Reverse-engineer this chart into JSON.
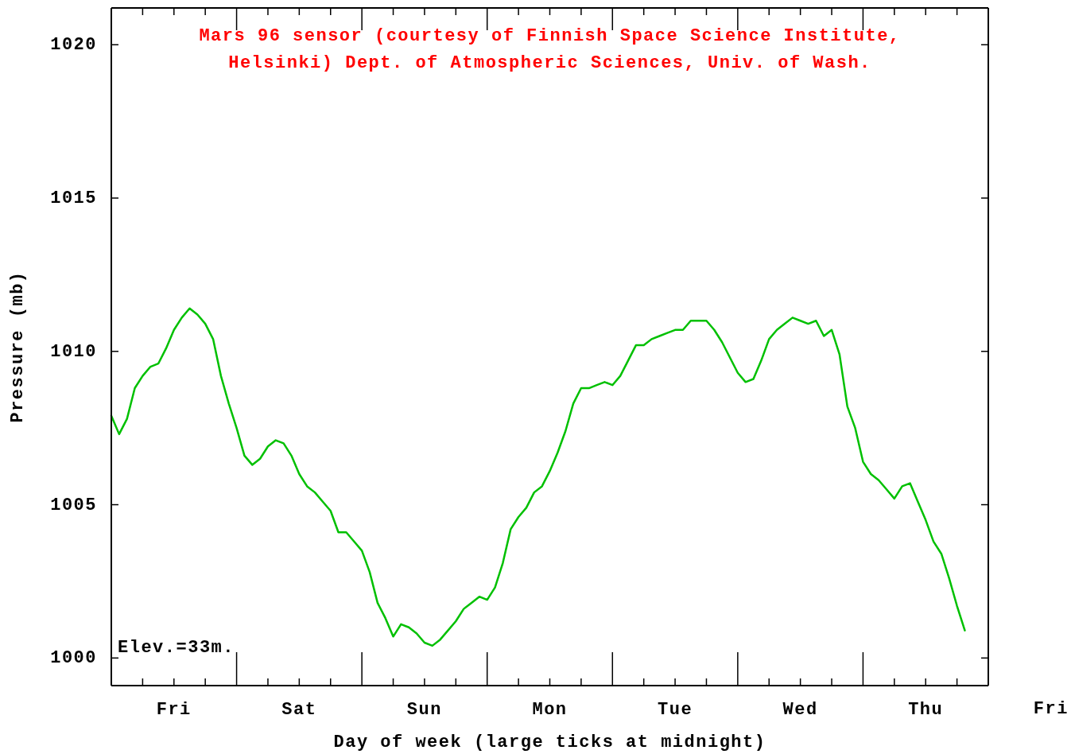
{
  "chart_data": {
    "type": "line",
    "title": "Mars 96 sensor (courtesy of Finnish Space Science Institute, Helsinki) Dept. of Atmospheric Sciences, Univ. of Wash.",
    "xlabel": "Day of week (large ticks at midnight)",
    "ylabel": "Pressure (mb)",
    "annotations": [
      "Elev.=33m.",
      "Fri"
    ],
    "categories": [
      null,
      null,
      null,
      null,
      null,
      null,
      null,
      null,
      "Fri",
      null,
      null,
      null,
      null,
      null,
      null,
      null,
      null,
      null,
      null,
      null,
      null,
      null,
      null,
      null,
      "Sat",
      null,
      null,
      null,
      null,
      null,
      null,
      null,
      null,
      null,
      null,
      null,
      null,
      null,
      null,
      null,
      "Sun",
      null,
      null,
      null,
      null,
      null,
      null,
      null,
      null,
      null,
      null,
      null,
      null,
      null,
      null,
      null,
      "Mon",
      null,
      null,
      null,
      null,
      null,
      null,
      null,
      null,
      null,
      null,
      null,
      null,
      null,
      null,
      null,
      "Tue",
      null,
      null,
      null,
      null,
      null,
      null,
      null,
      null,
      null,
      null,
      null,
      null,
      null,
      null,
      null,
      "Wed",
      null,
      null,
      null,
      null,
      null,
      null,
      null,
      null,
      null,
      null,
      null,
      null,
      null,
      null,
      null,
      "Thu",
      null,
      null,
      null,
      null,
      null,
      null,
      null,
      null
    ],
    "values": [
      1007.9,
      1007.3,
      1007.8,
      1008.8,
      1009.2,
      1009.5,
      1009.6,
      1010.1,
      1010.7,
      1011.1,
      1011.4,
      1011.2,
      1010.9,
      1010.4,
      1009.2,
      1008.3,
      1007.5,
      1006.6,
      1006.3,
      1006.5,
      1006.9,
      1007.1,
      1007.0,
      1006.6,
      1006.0,
      1005.6,
      1005.4,
      1005.1,
      1004.8,
      1004.1,
      1004.1,
      1003.8,
      1003.5,
      1002.8,
      1001.8,
      1001.3,
      1000.7,
      1001.1,
      1001.0,
      1000.8,
      1000.5,
      1000.4,
      1000.6,
      1000.9,
      1001.2,
      1001.6,
      1001.8,
      1002.0,
      1001.9,
      1002.3,
      1003.1,
      1004.2,
      1004.6,
      1004.9,
      1005.4,
      1005.6,
      1006.1,
      1006.7,
      1007.4,
      1008.3,
      1008.8,
      1008.8,
      1008.9,
      1009.0,
      1008.9,
      1009.2,
      1009.7,
      1010.2,
      1010.2,
      1010.4,
      1010.5,
      1010.6,
      1010.7,
      1010.7,
      1011.0,
      1011.0,
      1011.0,
      1010.7,
      1010.3,
      1009.8,
      1009.3,
      1009.0,
      1009.1,
      1009.7,
      1010.4,
      1010.7,
      1010.9,
      1011.1,
      1011.0,
      1010.9,
      1011.0,
      1010.5,
      1010.7,
      1009.9,
      1008.2,
      1007.5,
      1006.4,
      1006.0,
      1005.8,
      1005.5,
      1005.2,
      1005.6,
      1005.7,
      1005.1,
      1004.5,
      1003.8,
      1003.4,
      1002.6,
      1001.7,
      1000.9,
      null,
      null,
      null
    ],
    "color": "#00c000",
    "marker": "none",
    "line_style": "solid",
    "ylim": [
      999.1,
      1021.2
    ],
    "yticks": [
      1000,
      1005,
      1010,
      1015,
      1020
    ]
  }
}
